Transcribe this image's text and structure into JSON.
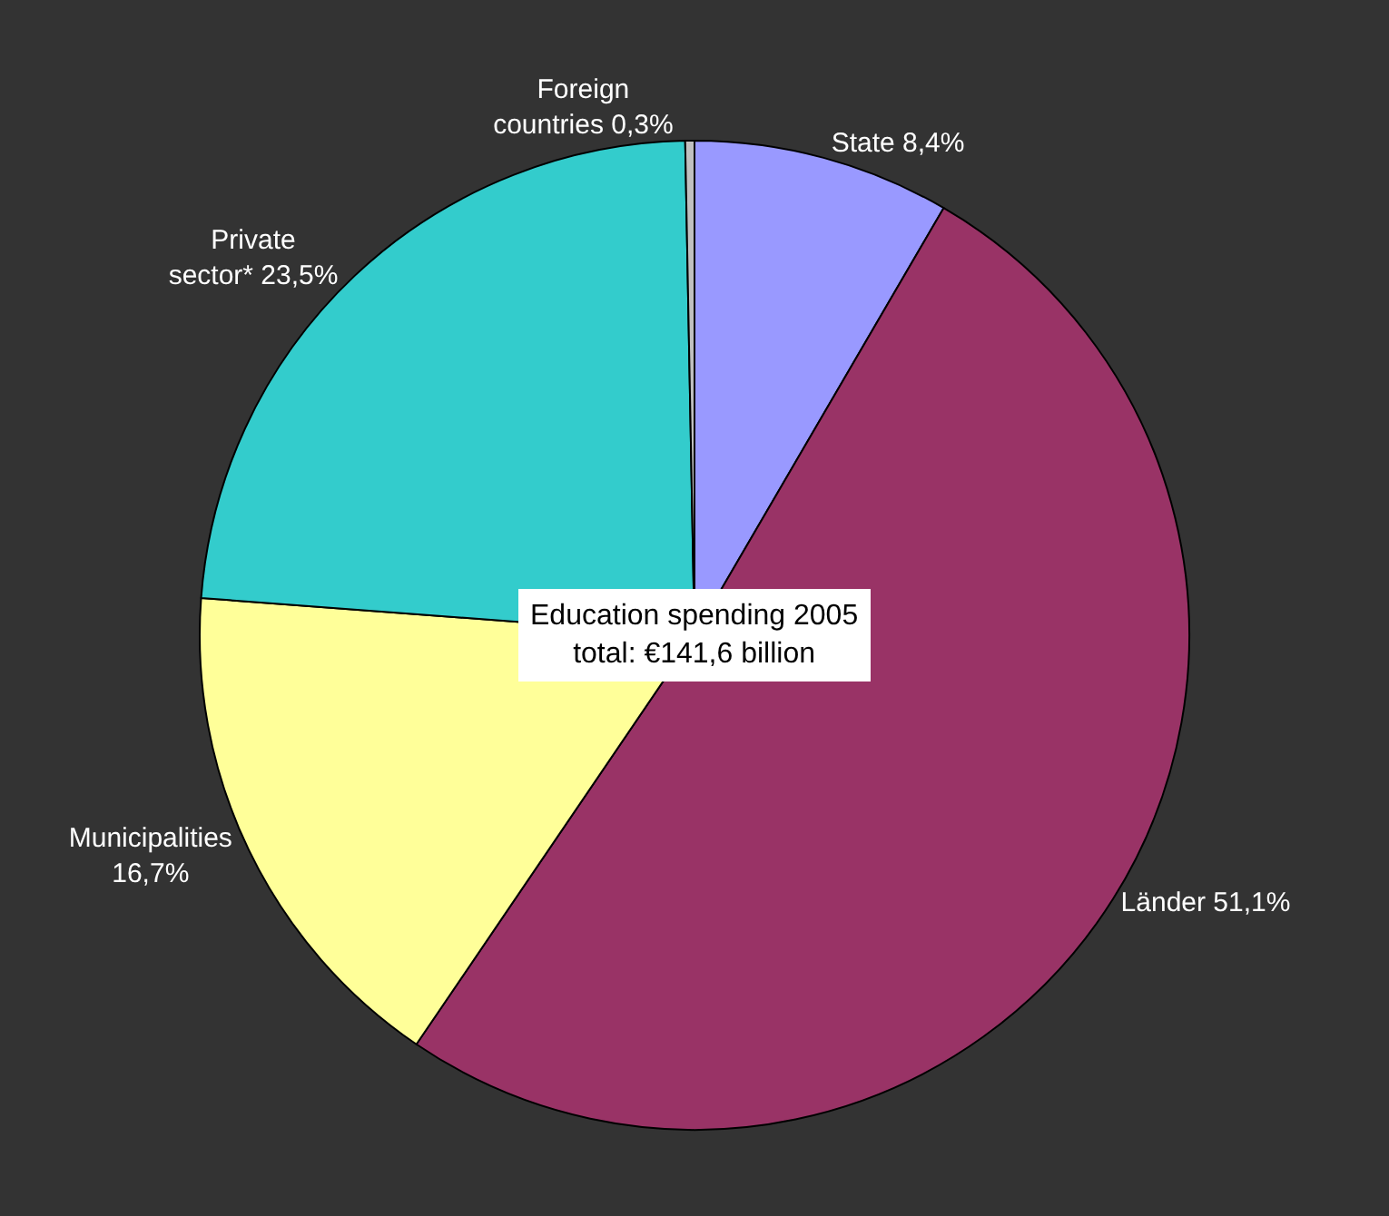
{
  "chart_data": {
    "type": "pie",
    "categories": [
      "State",
      "Länder",
      "Municipalities",
      "Private sector*",
      "Foreign countries"
    ],
    "values": [
      8.4,
      51.1,
      16.7,
      23.5,
      0.3
    ],
    "value_labels": [
      "8,4%",
      "51,1%",
      "16,7%",
      "23,5%",
      "0,3%"
    ],
    "colors": [
      "#9999ff",
      "#993366",
      "#ffff99",
      "#33cccc",
      "#c0c0c0"
    ],
    "annotations": [
      "Education spending 2005\ntotal: €141,6 billion"
    ],
    "legend": false
  }
}
